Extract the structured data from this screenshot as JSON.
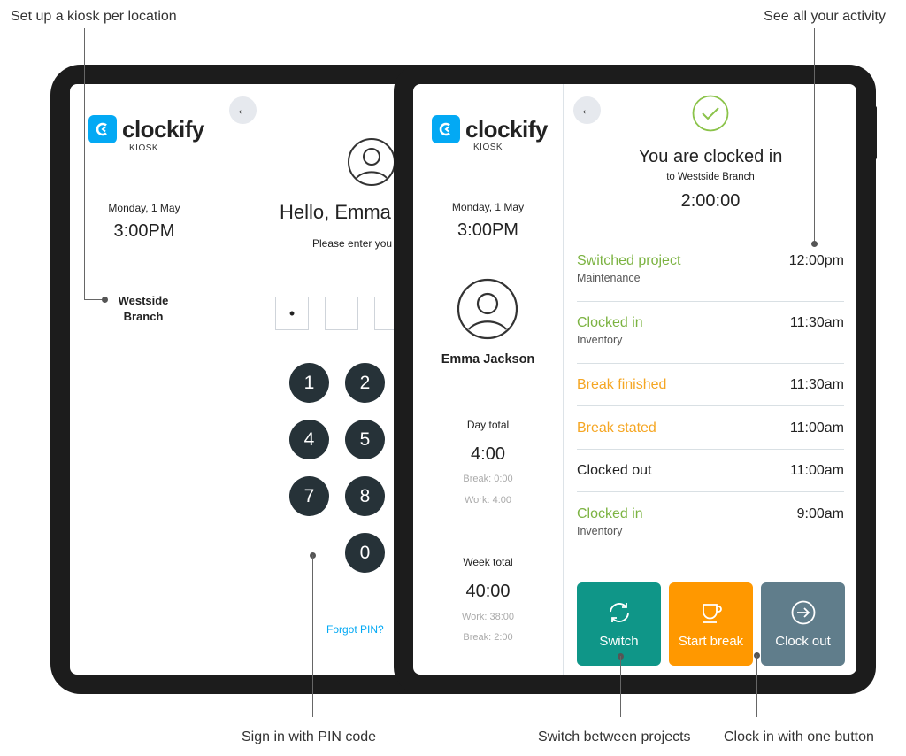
{
  "annotations": {
    "kiosk_per_location": "Set up a kiosk per location",
    "see_activity": "See all your activity",
    "sign_in_pin": "Sign in with PIN code",
    "switch_projects": "Switch between projects",
    "clock_in_one_button": "Clock in with one button"
  },
  "brand": {
    "name": "clockify",
    "sub": "KIOSK",
    "color": "#03a9f4"
  },
  "back_tablet": {
    "date": "Monday, 1 May",
    "time": "3:00PM",
    "location_line1": "Westside",
    "location_line2": "Branch",
    "greeting": "Hello, Emma",
    "prompt": "Please enter you",
    "pin_dot": "•",
    "keys": [
      "1",
      "2",
      "4",
      "5",
      "7",
      "8",
      "0"
    ],
    "forgot_pin": "Forgot PIN?"
  },
  "front_tablet": {
    "date": "Monday, 1 May",
    "time": "3:00PM",
    "user_name": "Emma Jackson",
    "day_total": {
      "label": "Day total",
      "value": "4:00",
      "break": "Break: 0:00",
      "work": "Work: 4:00"
    },
    "week_total": {
      "label": "Week total",
      "value": "40:00",
      "work": "Work: 38:00",
      "break": "Break: 2:00"
    },
    "status": {
      "title": "You are clocked in",
      "location": "to Westside Branch",
      "timer": "2:00:00"
    },
    "activity": [
      {
        "title": "Switched project",
        "sub": "Maintenance",
        "time": "12:00pm",
        "color": "#7cb342"
      },
      {
        "title": "Clocked in",
        "sub": "Inventory",
        "time": "11:30am",
        "color": "#7cb342"
      },
      {
        "title": "Break finished",
        "sub": "",
        "time": "11:30am",
        "color": "#f5a623"
      },
      {
        "title": "Break stated",
        "sub": "",
        "time": "11:00am",
        "color": "#f5a623"
      },
      {
        "title": "Clocked out",
        "sub": "",
        "time": "11:00am",
        "color": "#222222"
      },
      {
        "title": "Clocked in",
        "sub": "Inventory",
        "time": "9:00am",
        "color": "#7cb342"
      }
    ],
    "buttons": {
      "switch": {
        "label": "Switch",
        "color": "#0f9688"
      },
      "start_break": {
        "label": "Start break",
        "color": "#ff9800"
      },
      "clock_out": {
        "label": "Clock out",
        "color": "#607d8b"
      }
    }
  }
}
